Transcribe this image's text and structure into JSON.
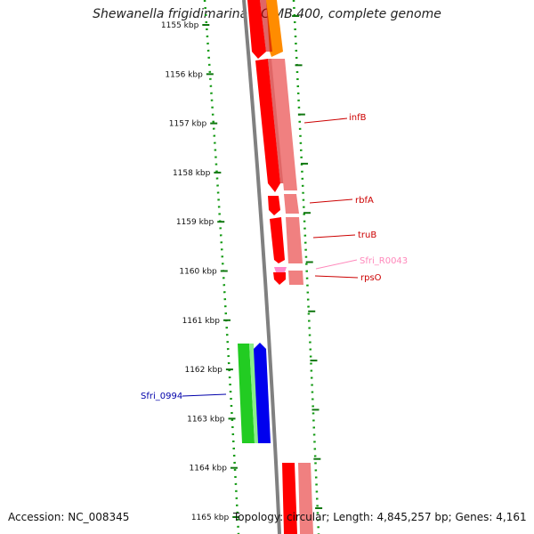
{
  "title": "Shewanella frigidimarina NCIMB 400, complete genome",
  "footer": {
    "accession": "Accession: NC_008345",
    "summary": "Topology: circular; Length: 4,845,257 bp; Genes: 4,161"
  },
  "ticks": [
    {
      "label": "1155 kbp"
    },
    {
      "label": "1156 kbp"
    },
    {
      "label": "1157 kbp"
    },
    {
      "label": "1158 kbp"
    },
    {
      "label": "1159 kbp"
    },
    {
      "label": "1160 kbp"
    },
    {
      "label": "1161 kbp"
    },
    {
      "label": "1162 kbp"
    },
    {
      "label": "1163 kbp"
    },
    {
      "label": "1164 kbp"
    },
    {
      "label": "1165 kbp"
    }
  ],
  "gene_labels": [
    {
      "name": "infB",
      "color": "#cc0000"
    },
    {
      "name": "rbfA",
      "color": "#cc0000"
    },
    {
      "name": "truB",
      "color": "#cc0000"
    },
    {
      "name": "Sfri_R0043",
      "color": "#ff88bb"
    },
    {
      "name": "rpsO",
      "color": "#cc0000"
    },
    {
      "name": "Sfri_0994",
      "color": "#0000aa"
    }
  ],
  "colors": {
    "cds": "#ff0000",
    "cds_shadow": "#f08080",
    "orange": "#ff8c00",
    "rna": "#ff88cc",
    "blue": "#0000ee",
    "green": "#22cc22",
    "backbone": "#808080",
    "ticks": "#117711"
  }
}
